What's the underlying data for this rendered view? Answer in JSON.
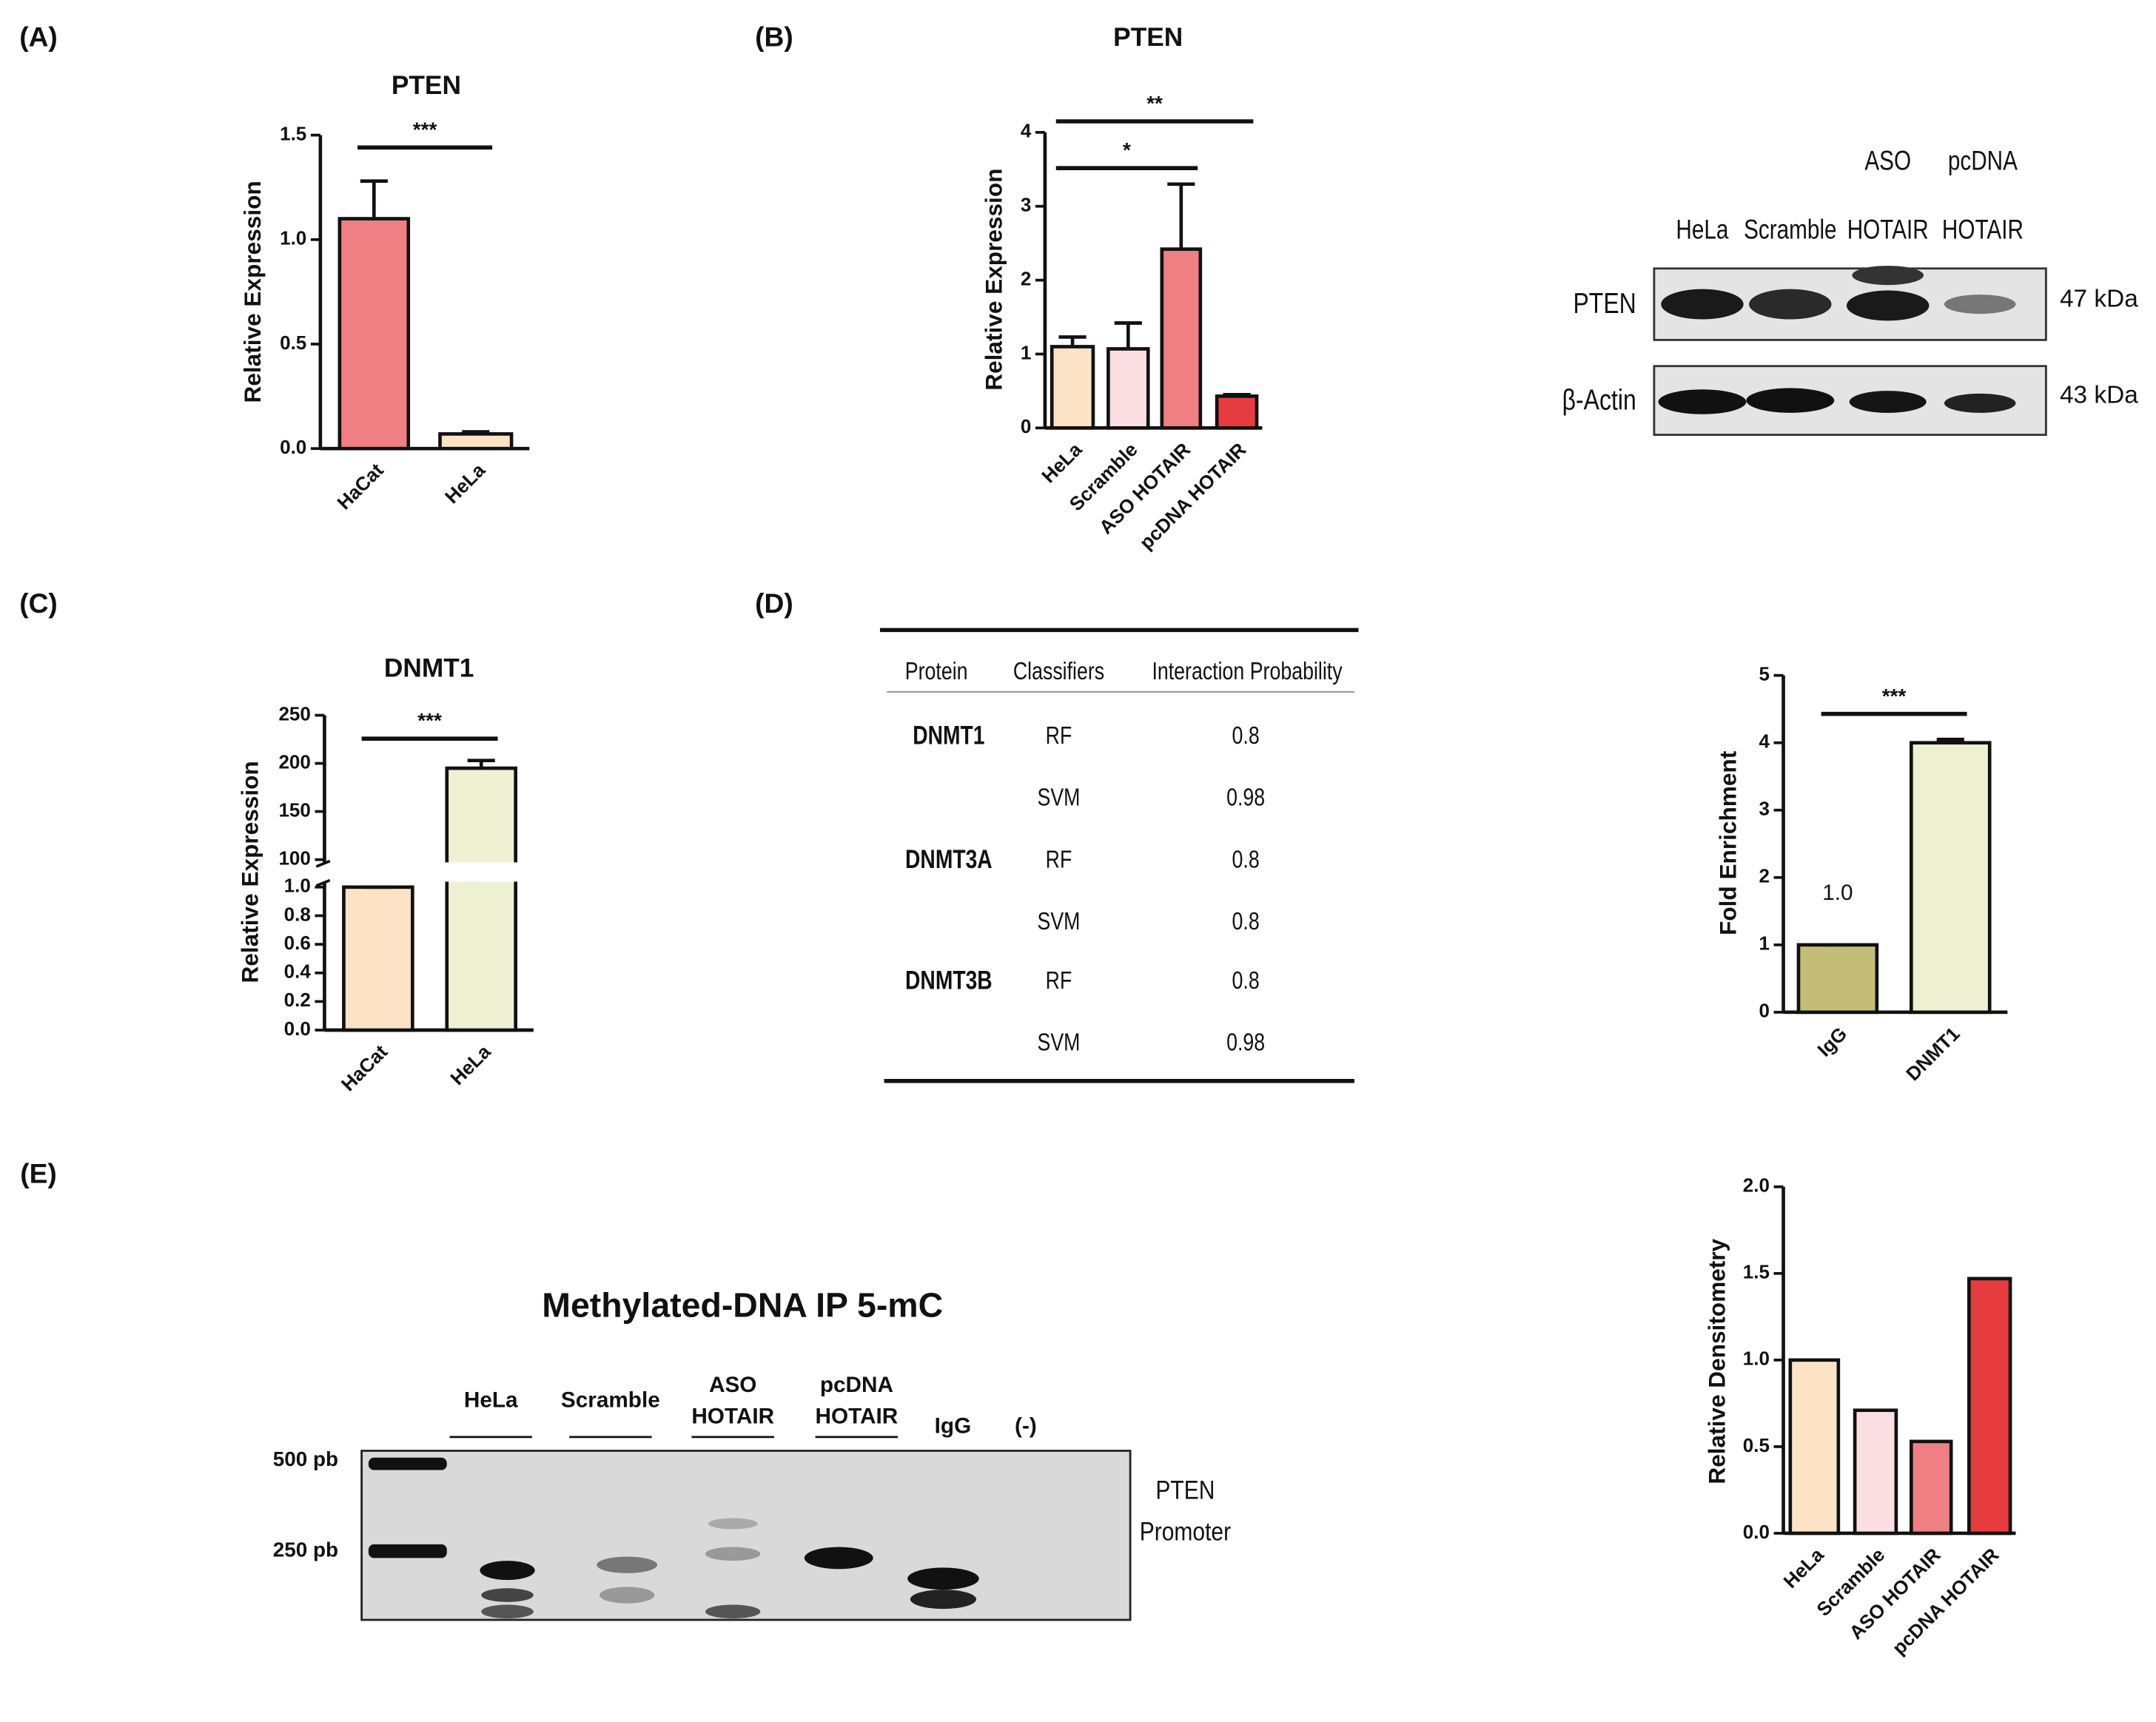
{
  "panel_labels": [
    "(A)",
    "(B)",
    "(C)",
    "(D)",
    "(E)"
  ],
  "chart_data": [
    {
      "type": "bar",
      "title": "PTEN",
      "ylabel": "Relative Expression",
      "categories": [
        "HaCat",
        "HeLa"
      ],
      "values": [
        1.1,
        0.07
      ],
      "errors": [
        0.18,
        0.01
      ],
      "colors": [
        "#ef7f83",
        "#fde3c5"
      ],
      "ylim": [
        0,
        1.5
      ],
      "yticks": [
        {
          "value": 0,
          "label": "0.0"
        },
        0.5,
        {
          "value": 1,
          "label": "1.0"
        },
        1.5
      ],
      "significance": [
        {
          "label": "***",
          "between": [
            "HaCat",
            "HeLa"
          ]
        }
      ]
    },
    {
      "type": "bar",
      "title": "PTEN",
      "ylabel": "Relative Expression",
      "categories": [
        "HeLa",
        "Scramble",
        "ASO HOTAIR",
        "pcDNA HOTAIR"
      ],
      "values": [
        1.1,
        1.07,
        2.42,
        0.43
      ],
      "errors": [
        0.13,
        0.35,
        0.88,
        0.02
      ],
      "colors": [
        "#fde3c5",
        "#fbdfe2",
        "#ef7f83",
        "#e63c40"
      ],
      "ylim": [
        0,
        4
      ],
      "yticks": [
        0,
        1,
        2,
        3,
        4
      ],
      "significance": [
        {
          "label": "*",
          "between": [
            "HeLa",
            "ASO HOTAIR"
          ]
        },
        {
          "label": "**",
          "between": [
            "HeLa",
            "pcDNA HOTAIR"
          ]
        }
      ]
    },
    {
      "type": "bar",
      "title": "DNMT1",
      "ylabel": "Relative Expression",
      "categories": [
        "HaCat",
        "HeLa"
      ],
      "values": [
        1,
        195
      ],
      "errors": [
        0,
        8
      ],
      "colors": [
        "#fde3c5",
        "#eef0d2"
      ],
      "ylim": [
        0,
        250
      ],
      "axis_break": [
        1,
        100
      ],
      "yticks": [
        {
          "value": 0,
          "label": "0.0"
        },
        0.2,
        0.4,
        0.6,
        0.8,
        {
          "value": 1,
          "label": "1.0"
        },
        100,
        150,
        200,
        250
      ],
      "significance": [
        {
          "label": "***",
          "between": [
            "HaCat",
            "HeLa"
          ]
        }
      ]
    },
    {
      "type": "bar",
      "ylabel": "Fold Enrichment",
      "categories": [
        "IgG",
        "DNMT1"
      ],
      "values": [
        1,
        4
      ],
      "value_labels": [
        "1.0",
        null
      ],
      "errors": [
        0,
        0.05
      ],
      "colors": [
        "#c4bd78",
        "#eef0d2"
      ],
      "ylim": [
        0,
        5
      ],
      "yticks": [
        0,
        1,
        2,
        3,
        4,
        5
      ],
      "significance": [
        {
          "label": "***",
          "between": [
            "IgG",
            "DNMT1"
          ]
        }
      ]
    },
    {
      "type": "bar",
      "ylabel": "Relative Densitometry",
      "categories": [
        "HeLa",
        "Scramble",
        "ASO HOTAIR",
        "pcDNA HOTAIR"
      ],
      "values": [
        1,
        0.71,
        0.53,
        1.47
      ],
      "colors": [
        "#fde3c5",
        "#fbdfe2",
        "#ef7f83",
        "#e63c40"
      ],
      "ylim": [
        0,
        2
      ],
      "yticks": [
        {
          "value": 0,
          "label": "0.0"
        },
        0.5,
        {
          "value": 1,
          "label": "1.0"
        },
        1.5,
        {
          "value": 2,
          "label": "2.0"
        }
      ]
    }
  ],
  "western_blot": {
    "lanes": [
      [
        "HeLa"
      ],
      [
        "Scramble"
      ],
      [
        "ASO",
        "HOTAIR"
      ],
      [
        "pcDNA",
        "HOTAIR"
      ]
    ],
    "rows": [
      {
        "protein": "PTEN",
        "size": "47 kDa"
      },
      {
        "protein": "β-Actin",
        "size": "43 kDa"
      }
    ]
  },
  "interaction_table": {
    "columns": [
      "Protein",
      "Classifiers",
      "Interaction Probability"
    ],
    "rows": [
      {
        "protein": "DNMT1",
        "classifiers": [
          "RF",
          "SVM"
        ],
        "probabilities": [
          "0.8",
          "0.98"
        ]
      },
      {
        "protein": "DNMT3A",
        "classifiers": [
          "RF",
          "SVM"
        ],
        "probabilities": [
          "0.8",
          "0.8"
        ]
      },
      {
        "protein": "DNMT3B",
        "classifiers": [
          "RF",
          "SVM"
        ],
        "probabilities": [
          "0.8",
          "0.98"
        ]
      }
    ]
  },
  "gel": {
    "title": "Methylated-DNA IP 5-mC",
    "lanes": [
      [
        "HeLa"
      ],
      [
        "Scramble"
      ],
      [
        "ASO",
        "HOTAIR"
      ],
      [
        "pcDNA",
        "HOTAIR"
      ],
      [
        "IgG"
      ],
      [
        "(-)"
      ]
    ],
    "markers": [
      "500 pb",
      "250 pb"
    ],
    "target": [
      "PTEN",
      "Promoter"
    ]
  }
}
